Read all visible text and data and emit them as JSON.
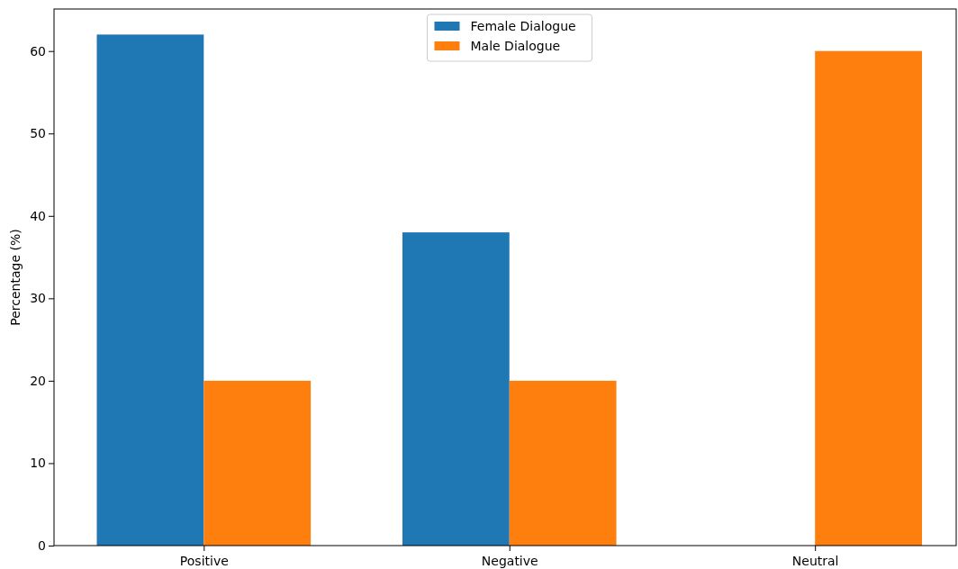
{
  "chart_data": {
    "type": "bar",
    "ylabel": "Percentage (%)",
    "categories": [
      "Positive",
      "Negative",
      "Neutral"
    ],
    "series": [
      {
        "name": "Female Dialogue",
        "color": "#1f77b4",
        "values": [
          62,
          38,
          0
        ]
      },
      {
        "name": "Male Dialogue",
        "color": "#ff7f0e",
        "values": [
          20,
          20,
          60
        ]
      }
    ],
    "ylim": [
      0,
      65.1
    ],
    "yticks": [
      0,
      10,
      20,
      30,
      40,
      50,
      60
    ],
    "grid": false,
    "legend": "top"
  }
}
